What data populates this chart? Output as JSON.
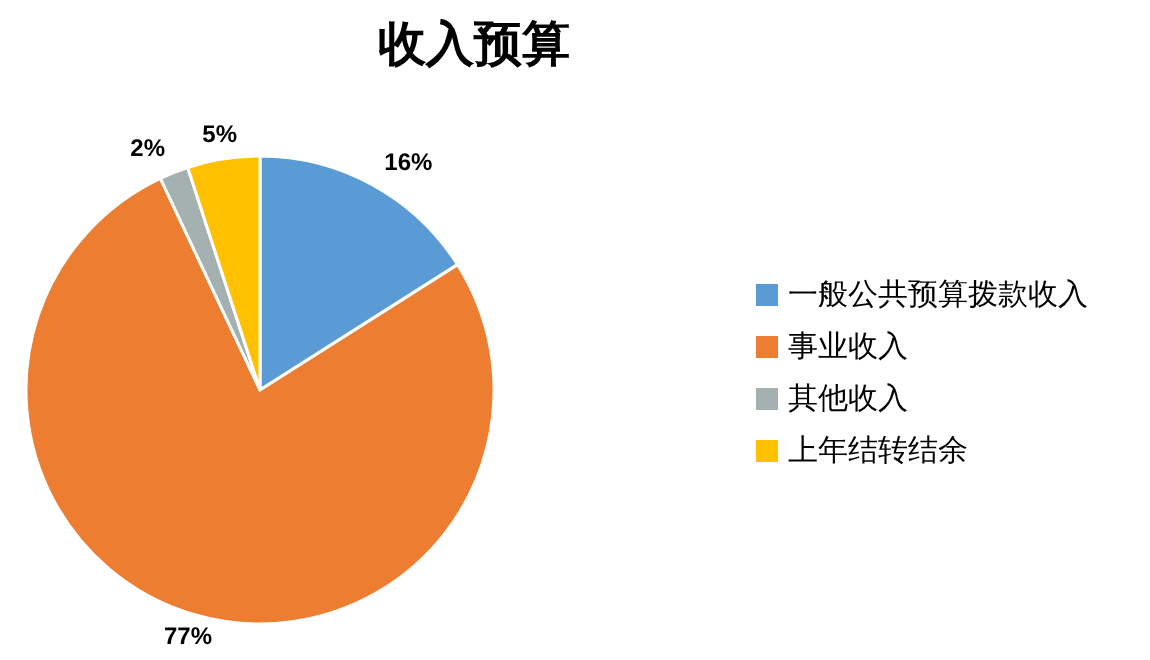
{
  "chart_data": {
    "type": "pie",
    "title": "收入预算",
    "categories": [
      "一般公共预算拨款收入",
      "事业收入",
      "其他收入",
      "上年结转结余"
    ],
    "values": [
      16,
      77,
      2,
      5
    ],
    "colors": [
      "#5b9bd5",
      "#ed7d31",
      "#a5b0b0",
      "#ffc000"
    ],
    "value_labels": [
      "16%",
      "77%",
      "2%",
      "5%"
    ],
    "legend": "right"
  }
}
